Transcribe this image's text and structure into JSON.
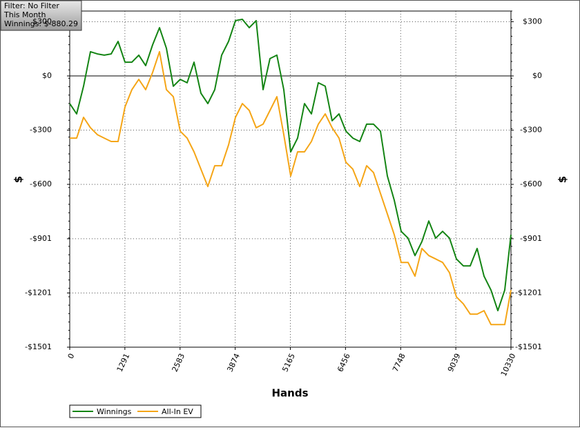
{
  "chart_data": {
    "type": "line",
    "annotations": [
      "Filter: No Filter",
      "This Month",
      "Winnings: $-880.29"
    ],
    "x_label": "Hands",
    "y_label": "$",
    "y2_label": "$",
    "grid": true,
    "legend": "bottom-left",
    "xlim": [
      0,
      10330
    ],
    "xticks": [
      0,
      1291,
      2583,
      3874,
      5165,
      6456,
      7748,
      9039,
      10330
    ],
    "ylim": [
      -1501,
      359
    ],
    "yticks": [
      {
        "value": 300,
        "label": "$300"
      },
      {
        "value": 0,
        "label": "$0"
      },
      {
        "value": -300,
        "label": "-$300"
      },
      {
        "value": -600,
        "label": "-$600"
      },
      {
        "value": -901,
        "label": "-$901"
      },
      {
        "value": -1201,
        "label": "-$1201"
      },
      {
        "value": -1501,
        "label": "-$1501"
      }
    ],
    "x": [
      0,
      162,
      323,
      485,
      647,
      808,
      970,
      1132,
      1293,
      1455,
      1617,
      1778,
      1940,
      2102,
      2263,
      2425,
      2587,
      2748,
      2910,
      3072,
      3233,
      3395,
      3557,
      3718,
      3880,
      4042,
      4203,
      4365,
      4527,
      4688,
      4850,
      5012,
      5173,
      5335,
      5497,
      5658,
      5820,
      5982,
      6143,
      6305,
      6467,
      6628,
      6790,
      6952,
      7113,
      7275,
      7437,
      7598,
      7760,
      7922,
      8083,
      8245,
      8407,
      8568,
      8730,
      8892,
      9053,
      9215,
      9377,
      9538,
      9700,
      9862,
      10023,
      10185,
      10330
    ],
    "series": [
      {
        "name": "Winnings",
        "color": "#138413",
        "values": [
          -153,
          -210,
          -57,
          134,
          122,
          115,
          122,
          191,
          76,
          76,
          115,
          57,
          172,
          267,
          153,
          -57,
          -19,
          -38,
          76,
          -96,
          -153,
          -76,
          115,
          191,
          306,
          313,
          267,
          306,
          -76,
          96,
          115,
          -76,
          -420,
          -344,
          -153,
          -210,
          -38,
          -57,
          -248,
          -210,
          -306,
          -344,
          -363,
          -267,
          -267,
          -306,
          -554,
          -688,
          -860,
          -898,
          -994,
          -917,
          -803,
          -898,
          -860,
          -898,
          -1013,
          -1051,
          -1051,
          -955,
          -1108,
          -1185,
          -1299,
          -1185,
          -879
        ]
      },
      {
        "name": "All-In EV",
        "color": "#f5a516",
        "values": [
          -344,
          -344,
          -229,
          -287,
          -325,
          -344,
          -363,
          -363,
          -172,
          -76,
          -19,
          -76,
          19,
          134,
          -76,
          -115,
          -306,
          -344,
          -420,
          -516,
          -612,
          -497,
          -497,
          -382,
          -229,
          -153,
          -191,
          -287,
          -267,
          -191,
          -115,
          -325,
          -554,
          -420,
          -420,
          -363,
          -267,
          -210,
          -287,
          -344,
          -478,
          -516,
          -612,
          -497,
          -535,
          -650,
          -764,
          -879,
          -1032,
          -1032,
          -1108,
          -955,
          -994,
          -1013,
          -1032,
          -1089,
          -1223,
          -1261,
          -1318,
          -1318,
          -1299,
          -1376,
          -1376,
          -1376,
          -1185
        ]
      }
    ]
  }
}
